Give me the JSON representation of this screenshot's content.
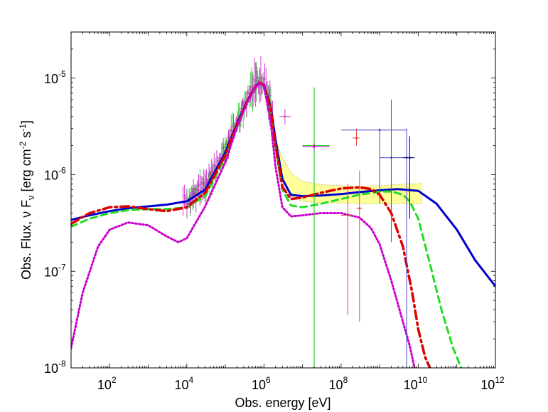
{
  "chart_data": {
    "type": "line",
    "title": "",
    "xlabel": "Obs. energy [eV]",
    "ylabel": "Obs. Flux, ν Fν [erg cm⁻² s⁻¹]",
    "ylabel_parts": {
      "main": "Obs. Flux, ν F",
      "nu_sub": "ν",
      "units_open": " [erg cm",
      "sup1": "-2",
      "mid": " s",
      "sup2": "-1",
      "close": "]"
    },
    "xscale": "log",
    "yscale": "log",
    "xlim": [
      10,
      1000000000000.0
    ],
    "ylim": [
      1e-08,
      3e-05
    ],
    "grid": false,
    "x_ticks": [
      {
        "base": "10",
        "exp": "2",
        "value": 100
      },
      {
        "base": "10",
        "exp": "4",
        "value": 10000
      },
      {
        "base": "10",
        "exp": "6",
        "value": 1000000
      },
      {
        "base": "10",
        "exp": "8",
        "value": 100000000
      },
      {
        "base": "10",
        "exp": "10",
        "value": 10000000000
      },
      {
        "base": "10",
        "exp": "12",
        "value": 1000000000000
      }
    ],
    "y_ticks": [
      {
        "base": "10",
        "exp": "-5",
        "value": 1e-05
      },
      {
        "base": "10",
        "exp": "-6",
        "value": 1e-06
      },
      {
        "base": "10",
        "exp": "-7",
        "value": 1e-07
      },
      {
        "base": "10",
        "exp": "-8",
        "value": 1e-08
      }
    ],
    "band": {
      "name": "uncertainty band",
      "color": "#ffff99",
      "edge": "#b0b060",
      "x": [
        1500000.0,
        2000000.0,
        3000000.0,
        5000000.0,
        10000000.0,
        30000000.0,
        100000000.0,
        300000000.0,
        1000000000.0,
        3000000000.0,
        10000000000.0,
        12000000000.0
      ],
      "upper": [
        3e-06,
        2.3e-06,
        1.5e-06,
        1.05e-06,
        8.5e-07,
        7.9e-07,
        7.7e-07,
        7.6e-07,
        7.7e-07,
        7.9e-07,
        8.1e-07,
        8.2e-07
      ],
      "lower": [
        3e-06,
        2e-06,
        1e-06,
        6e-07,
        5.3e-07,
        5.1e-07,
        5.1e-07,
        5e-07,
        5e-07,
        5e-07,
        5e-07,
        5e-07
      ]
    },
    "series": [
      {
        "name": "blue solid model",
        "color": "#0000cc",
        "dash": "",
        "width": 3,
        "x": [
          10,
          30,
          100,
          300,
          1000,
          3000,
          10000,
          30000,
          100000,
          200000,
          400000,
          600000,
          800000,
          1000000,
          1500000,
          2000000,
          3000000,
          5000000,
          10000000.0,
          30000000.0,
          100000000.0,
          300000000.0,
          1000000000.0,
          3000000000.0,
          10000000000.0,
          30000000000.0,
          100000000000.0,
          300000000000.0,
          1000000000000.0
        ],
        "y": [
          3.4e-07,
          3.8e-07,
          4.2e-07,
          4.5e-07,
          4.7e-07,
          4.9e-07,
          5.3e-07,
          7e-07,
          1.7e-06,
          3.4e-06,
          6.2e-06,
          8.3e-06,
          9e-06,
          8.5e-06,
          5e-06,
          2.3e-06,
          9e-07,
          6.2e-07,
          6e-07,
          6.1e-07,
          6.3e-07,
          6.6e-07,
          6.9e-07,
          7.1e-07,
          6.8e-07,
          5e-07,
          2.7e-07,
          1.3e-07,
          7e-08
        ]
      },
      {
        "name": "green dashed model",
        "color": "#22dd22",
        "dash": "9 6",
        "width": 3,
        "x": [
          10,
          30,
          100,
          300,
          1000,
          3000,
          10000,
          30000,
          100000,
          200000,
          400000,
          600000,
          800000,
          1000000,
          1500000,
          2000000,
          3000000,
          5000000,
          10000000.0,
          30000000.0,
          100000000.0,
          300000000.0,
          1000000000.0,
          2000000000.0,
          4000000000.0,
          6000000000.0,
          10000000000.0,
          20000000000.0,
          40000000000.0,
          80000000000.0,
          130000000000.0
        ],
        "y": [
          2.9e-07,
          3.5e-07,
          4e-07,
          4.3e-07,
          4.4e-07,
          4.4e-07,
          4.6e-07,
          6e-07,
          1.5e-06,
          3.2e-06,
          6e-06,
          8.2e-06,
          9e-06,
          8.4e-06,
          4.6e-06,
          1.9e-06,
          7e-07,
          4.8e-07,
          4.6e-07,
          5e-07,
          5.6e-07,
          6.2e-07,
          6.7e-07,
          6.7e-07,
          6.2e-07,
          5.3e-07,
          3.5e-07,
          1.2e-07,
          4e-08,
          1.6e-08,
          1e-08
        ]
      },
      {
        "name": "red dash-dot model",
        "color": "#dd0000",
        "dash": "12 5 3 5",
        "width": 3.5,
        "x": [
          10,
          30,
          100,
          300,
          1000,
          3000,
          10000,
          30000,
          100000,
          200000,
          400000,
          600000,
          800000,
          1000000,
          1500000,
          2000000,
          3000000,
          5000000,
          10000000.0,
          30000000.0,
          100000000.0,
          300000000.0,
          600000000.0,
          1000000000.0,
          2000000000.0,
          4000000000.0,
          7000000000.0,
          10000000000.0,
          15000000000.0,
          20000000000.0
        ],
        "y": [
          3.1e-07,
          4e-07,
          4.6e-07,
          4.7e-07,
          4.4e-07,
          4.2e-07,
          4.6e-07,
          6.5e-07,
          1.6e-06,
          3.3e-06,
          6.1e-06,
          8.2e-06,
          9e-06,
          8.4e-06,
          4.7e-06,
          2e-06,
          7.5e-07,
          5.6e-07,
          5.8e-07,
          6.5e-07,
          7.2e-07,
          7.4e-07,
          7.1e-07,
          6.2e-07,
          4e-07,
          1.8e-07,
          6e-08,
          2.5e-08,
          1.3e-08,
          1e-08
        ]
      },
      {
        "name": "magenta dotted model",
        "color": "#cc00cc",
        "dash": "2 3",
        "width": 3,
        "x": [
          10,
          20,
          50,
          100,
          300,
          1000,
          3000,
          6000,
          10000,
          30000,
          100000,
          200000,
          400000,
          600000,
          800000,
          1000000,
          1500000,
          2000000,
          3000000,
          5000000,
          10000000.0,
          30000000.0,
          100000000.0,
          300000000.0,
          600000000.0,
          1000000000.0,
          2000000000.0,
          4000000000.0,
          6000000000.0,
          8000000000.0
        ],
        "y": [
          1.6e-08,
          6e-08,
          1.8e-07,
          2.7e-07,
          3.2e-07,
          3e-07,
          2.3e-07,
          2e-07,
          2.2e-07,
          4.7e-07,
          1.35e-06,
          3.1e-06,
          6e-06,
          8.1e-06,
          8.9e-06,
          8.2e-06,
          3.5e-06,
          1.2e-06,
          4.6e-07,
          3.7e-07,
          3.8e-07,
          4e-07,
          4e-07,
          3.6e-07,
          2.8e-07,
          1.9e-07,
          8e-08,
          3e-08,
          1.7e-08,
          1e-08
        ]
      }
    ],
    "data_points": [
      {
        "name": "green point A",
        "color": "#00cc00",
        "x": 20000000.0,
        "y": 2e-06,
        "xerr": [
          10000000.0,
          50000000.0
        ],
        "yerr": [
          1e-08,
          8e-06
        ]
      },
      {
        "name": "magenta point A",
        "color": "#cc00cc",
        "x": 20000000.0,
        "y": 1.95e-06,
        "xerr": [
          10000000.0,
          50000000.0
        ],
        "yerr": [
          1.8e-06,
          2.1e-06
        ]
      },
      {
        "name": "magenta point B",
        "color": "#cc44cc",
        "x": 3500000.0,
        "y": 4e-06,
        "xerr": [
          2500000.0,
          5000000.0
        ],
        "yerr": [
          3.3e-06,
          4.8e-06
        ]
      },
      {
        "name": "red point A",
        "color": "#dd4444",
        "x": 150000000.0,
        "y": 3.8e-07,
        "xerr": [
          100000000.0,
          200000000.0
        ],
        "yerr": [
          3.5e-08,
          8e-07
        ]
      },
      {
        "name": "red point B",
        "color": "#dd4444",
        "x": 250000000.0,
        "y": 2.4e-06,
        "xerr": [
          200000000.0,
          300000000.0
        ],
        "yerr": [
          2e-06,
          3e-06
        ]
      },
      {
        "name": "red point C",
        "color": "#dd4444",
        "x": 300000000.0,
        "y": 4.5e-07,
        "xerr": [
          250000000.0,
          350000000.0
        ],
        "yerr": [
          3e-08,
          1.1e-06
        ]
      },
      {
        "name": "blue point A",
        "color": "#4444cc",
        "x": 1000000000.0,
        "y": 2.9e-06,
        "xerr": [
          100000000.0,
          5000000000.0
        ],
        "yerr": [
          5e-07,
          3e-06
        ]
      },
      {
        "name": "blue point B",
        "color": "#4444cc",
        "x": 2000000000.0,
        "y": 1.5e-06,
        "xerr": [
          1000000000.0,
          3000000000.0
        ],
        "yerr": [
          2e-07,
          6e-06
        ]
      },
      {
        "name": "blue point C",
        "color": "#4444cc",
        "x": 5000000000.0,
        "y": 1.5e-06,
        "xerr": [
          3000000000.0,
          8000000000.0
        ],
        "yerr": [
          1e-08,
          3e-06
        ]
      },
      {
        "name": "navy point A",
        "color": "#000066",
        "x": 6000000000.0,
        "y": 1.5e-06,
        "xerr": [
          4000000000.0,
          8000000000.0
        ],
        "yerr": [
          3.5e-07,
          2.5e-06
        ]
      }
    ],
    "spectra_data": [
      {
        "name": "green spectrum",
        "color": "#33cc33",
        "x_range": [
          10000.0,
          1500000.0
        ]
      },
      {
        "name": "magenta spectrum",
        "color": "#cc22cc",
        "x_range": [
          8000,
          1800000.0
        ]
      }
    ]
  }
}
